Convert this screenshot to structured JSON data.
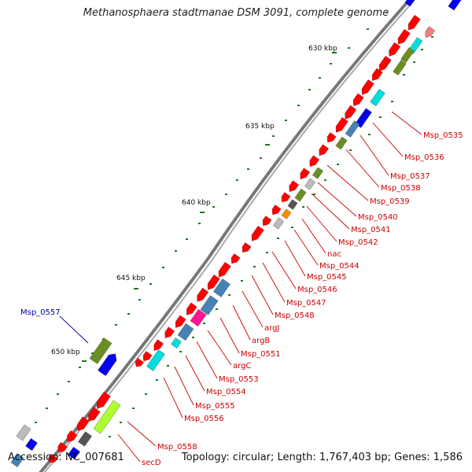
{
  "title": "Methanosphaera stadtmanae DSM 3091, complete genome",
  "footer": {
    "accession": "Accession: NC_007681",
    "topology": "Topology: circular; Length: 1,767,403 bp; Genes: 1,586"
  },
  "colors": {
    "backbone": "#777777",
    "gene_default": "#ff0000",
    "label_red": "#cc0000",
    "label_blue": "#0000aa",
    "tick": "#1a7a1a",
    "cog_cyan": "#00dddd",
    "cog_olive": "#6b8e23",
    "cog_blue": "#0000ee",
    "cog_steel": "#4682b4",
    "cog_magenta": "#ff1493",
    "cog_lime": "#adff2f",
    "cog_gray": "#bbbbbb",
    "cog_darkgray": "#555555",
    "cog_orange": "#ff8c00",
    "cog_pink": "#f08080"
  },
  "scale_labels": [
    "630 kbp",
    "635 kbp",
    "640 kbp",
    "645 kbp",
    "650 kbp"
  ],
  "gene_labels": [
    {
      "text": "Msp_0535",
      "color": "red"
    },
    {
      "text": "Msp_0536",
      "color": "red"
    },
    {
      "text": "Msp_0537",
      "color": "red"
    },
    {
      "text": "Msp_0538",
      "color": "red"
    },
    {
      "text": "Msp_0539",
      "color": "red"
    },
    {
      "text": "Msp_0540",
      "color": "red"
    },
    {
      "text": "Msp_0541",
      "color": "red"
    },
    {
      "text": "Msp_0542",
      "color": "red"
    },
    {
      "text": "nac",
      "color": "red"
    },
    {
      "text": "Msp_0544",
      "color": "red"
    },
    {
      "text": "Msp_0545",
      "color": "red"
    },
    {
      "text": "Msp_0546",
      "color": "red"
    },
    {
      "text": "Msp_0547",
      "color": "red"
    },
    {
      "text": "Msp_0548",
      "color": "red"
    },
    {
      "text": "argJ",
      "color": "red"
    },
    {
      "text": "argB",
      "color": "red"
    },
    {
      "text": "Msp_0551",
      "color": "red"
    },
    {
      "text": "argC",
      "color": "red"
    },
    {
      "text": "Msp_0553",
      "color": "red"
    },
    {
      "text": "Msp_0554",
      "color": "red"
    },
    {
      "text": "Msp_0555",
      "color": "red"
    },
    {
      "text": "Msp_0556",
      "color": "red"
    },
    {
      "text": "Msp_0557",
      "color": "blue"
    },
    {
      "text": "Msp_0558",
      "color": "red"
    },
    {
      "text": "secD",
      "color": "red"
    }
  ]
}
